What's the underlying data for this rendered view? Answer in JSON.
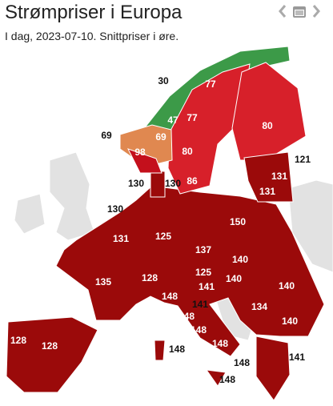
{
  "header": {
    "title": "Strømpriser i Europa",
    "subtitle": "I dag, 2023-07-10. Snittpriser i øre."
  },
  "map": {
    "regions": [
      30,
      77,
      47,
      77,
      80,
      69,
      69,
      98,
      80,
      121,
      131,
      130,
      130,
      86,
      131,
      130,
      150,
      131,
      125,
      137,
      140,
      128,
      125,
      140,
      135,
      141,
      140,
      148,
      141,
      134,
      148,
      148,
      140,
      128,
      128,
      148,
      148,
      148,
      141,
      148
    ]
  }
}
